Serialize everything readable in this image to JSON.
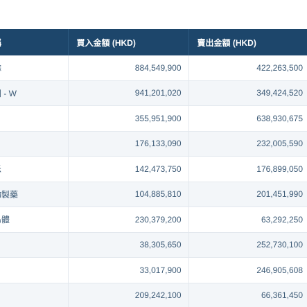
{
  "header": {
    "name_label": "稱",
    "buy_label": "買入金額 (HKD)",
    "sell_label": "賣出金額 (HKD)"
  },
  "rows": [
    {
      "name": "餘",
      "buy": "884,549,900",
      "sell": "422,263,500"
    },
    {
      "name": "團 - W",
      "buy": "941,201,020",
      "sell": "349,424,520"
    },
    {
      "name": "V",
      "buy": "355,951,900",
      "sell": "638,930,675"
    },
    {
      "name": "I",
      "buy": "176,133,090",
      "sell": "232,005,590"
    },
    {
      "name": "乐",
      "buy": "142,473,750",
      "sell": "176,899,050"
    },
    {
      "name": "物製藥",
      "buy": "104,885,810",
      "sell": "201,451,990"
    },
    {
      "name": "島體",
      "buy": "230,379,200",
      "sell": "63,292,250"
    },
    {
      "name": "]",
      "buy": "38,305,650",
      "sell": "252,730,100"
    },
    {
      "name": "F",
      "buy": "33,017,900",
      "sell": "246,905,608"
    },
    {
      "name": "",
      "buy": "209,242,100",
      "sell": "66,361,450"
    }
  ]
}
